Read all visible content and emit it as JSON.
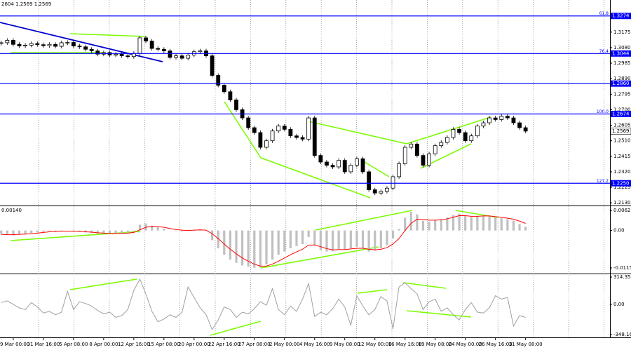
{
  "chart_data": [
    {
      "type": "candlestick",
      "title": "2604 1.2569 1.2569",
      "values": [
        1.311,
        1.3125,
        1.31,
        1.309,
        1.3095,
        1.3105,
        1.3098,
        1.3092,
        1.31,
        1.3088,
        1.311,
        1.3112,
        1.309,
        1.3085,
        1.307,
        1.306,
        1.304,
        1.305,
        1.3035,
        1.304,
        1.303,
        1.3025,
        1.3045,
        1.314,
        1.312,
        1.3075,
        1.307,
        1.306,
        1.302,
        1.303,
        1.3015,
        1.3035,
        1.3055,
        1.306,
        1.303,
        1.291,
        1.285,
        1.281,
        1.276,
        1.27,
        1.265,
        1.259,
        1.256,
        1.247,
        1.251,
        1.257,
        1.26,
        1.258,
        1.254,
        1.253,
        1.252,
        1.265,
        1.242,
        1.238,
        1.236,
        1.235,
        1.239,
        1.232,
        1.236,
        1.24,
        1.232,
        1.221,
        1.219,
        1.22,
        1.222,
        1.229,
        1.237,
        1.247,
        1.249,
        1.242,
        1.236,
        1.243,
        1.248,
        1.25,
        1.253,
        1.258,
        1.256,
        1.251,
        1.254,
        1.26,
        1.262,
        1.265,
        1.264,
        1.266,
        1.265,
        1.262,
        1.259,
        1.2569
      ],
      "xlim": [
        -0.2,
        101
      ],
      "xticks": [
        {
          "value": 2,
          "label": "29 Mar 00:00"
        },
        {
          "value": 7,
          "label": "31 Mar 16:00"
        },
        {
          "value": 12,
          "label": "5 Apr 08:00"
        },
        {
          "value": 17,
          "label": "8 Apr 00:00"
        },
        {
          "value": 22,
          "label": "12 Apr 16:00"
        },
        {
          "value": 27,
          "label": "15 Apr 08:00"
        },
        {
          "value": 32,
          "label": "20 Apr 00:00"
        },
        {
          "value": 37,
          "label": "22 Apr 16:00"
        },
        {
          "value": 42,
          "label": "27 Apr 08:00"
        },
        {
          "value": 47,
          "label": "2 May 00:00"
        },
        {
          "value": 52,
          "label": "4 May 16:00"
        },
        {
          "value": 57,
          "label": "9 May 08:00"
        },
        {
          "value": 62,
          "label": "12 May 00:00"
        },
        {
          "value": 67,
          "label": "16 May 16:00"
        },
        {
          "value": 72,
          "label": "19 May 08:00"
        },
        {
          "value": 77,
          "label": "24 May 00:00"
        },
        {
          "value": 82,
          "label": "26 May 16:00"
        },
        {
          "value": 87,
          "label": "31 May 08:00"
        }
      ],
      "ylim": [
        1.2118,
        1.3363
      ],
      "yticks": [
        1.3175,
        {
          "value": 1.308,
          "label": "1.3080"
        },
        1.2985,
        {
          "value": 1.289,
          "label": "1.2890"
        },
        1.2795,
        {
          "value": 1.27,
          "label": "1.2700"
        },
        1.2605,
        {
          "value": 1.251,
          "label": "1.2510"
        },
        1.2415,
        {
          "value": 1.232,
          "label": "1.2320"
        },
        1.2225,
        {
          "value": 1.213,
          "label": "1.2130"
        }
      ],
      "levels": [
        {
          "price": 1.3274,
          "fib": "61.8"
        },
        {
          "price": 1.3044,
          "fib": "76.4"
        },
        {
          "price": {
            "value": 1.286,
            "label": "1.2860"
          }
        },
        {
          "price": 1.2674,
          "fib": "100.0"
        },
        {
          "price": {
            "value": 1.225,
            "label": "1.2250"
          },
          "fib": "127.2"
        }
      ],
      "level_color": "#0000ff",
      "last_price": 1.2569
    },
    {
      "type": "macd",
      "title": "0.00140",
      "ylim": [
        -0.0131,
        0.0073
      ],
      "yticks": [
        0.0062,
        {
          "value": 0,
          "label": "0.00"
        },
        -0.01158
      ],
      "series": [
        {
          "color": "#c0c0c0",
          "values": [
            -0.001,
            -0.0012,
            -0.0015,
            -0.0012,
            -0.001,
            -0.0008,
            -0.0006,
            -0.0004,
            -0.0002,
            -0.0003,
            -0.0001,
            0.0,
            -0.0002,
            -0.0004,
            -0.0006,
            -0.0008,
            -0.001,
            -0.0009,
            -0.001,
            -0.0008,
            -0.0009,
            -0.0007,
            -0.0002,
            0.0018,
            0.0022,
            0.0015,
            0.001,
            0.0006,
            0.0,
            -0.0002,
            -0.0003,
            -0.0001,
            0.0002,
            0.0004,
            0.0,
            -0.003,
            -0.0055,
            -0.0075,
            -0.009,
            -0.01,
            -0.0108,
            -0.0112,
            -0.0115,
            -0.0114,
            -0.0105,
            -0.009,
            -0.0075,
            -0.0065,
            -0.0055,
            -0.0048,
            -0.0042,
            -0.002,
            -0.0045,
            -0.006,
            -0.0065,
            -0.0064,
            -0.0058,
            -0.006,
            -0.0055,
            -0.005,
            -0.0055,
            -0.0065,
            -0.0062,
            -0.0055,
            -0.0045,
            -0.0025,
            0.0005,
            0.004,
            0.0058,
            0.005,
            0.003,
            0.0028,
            0.0032,
            0.0035,
            0.004,
            0.0048,
            0.0052,
            0.0045,
            0.0042,
            0.0045,
            0.0046,
            0.0045,
            0.004,
            0.0038,
            0.0035,
            0.003,
            0.002,
            0.0012
          ]
        },
        {
          "color": "#ff0000",
          "values": [
            -0.0012,
            -0.0013,
            -0.0013,
            -0.0012,
            -0.0011,
            -0.001,
            -0.0008,
            -0.0006,
            -0.0004,
            -0.0003,
            -0.0002,
            -0.0002,
            -0.0002,
            -0.0003,
            -0.0004,
            -0.0005,
            -0.0007,
            -0.0008,
            -0.0009,
            -0.0009,
            -0.0009,
            -0.0008,
            -0.0006,
            0.0002,
            0.001,
            0.0013,
            0.0012,
            0.001,
            0.0006,
            0.0003,
            0.0001,
            0.0,
            0.0001,
            0.0002,
            0.0001,
            -0.001,
            -0.0025,
            -0.0042,
            -0.0058,
            -0.0072,
            -0.0085,
            -0.0095,
            -0.0104,
            -0.011,
            -0.011,
            -0.0104,
            -0.0095,
            -0.0085,
            -0.0075,
            -0.0066,
            -0.0058,
            -0.0045,
            -0.0045,
            -0.005,
            -0.0056,
            -0.006,
            -0.0059,
            -0.0059,
            -0.0057,
            -0.0055,
            -0.0055,
            -0.0058,
            -0.006,
            -0.0058,
            -0.0053,
            -0.0042,
            -0.0025,
            0.0,
            0.0022,
            0.0035,
            0.0034,
            0.0032,
            0.0032,
            0.0033,
            0.0036,
            0.0041,
            0.0046,
            0.0046,
            0.0044,
            0.0044,
            0.0045,
            0.0045,
            0.0043,
            0.0041,
            0.0038,
            0.0035,
            0.0029,
            0.0022
          ]
        }
      ]
    },
    {
      "type": "line",
      "ylim": [
        -372.1,
        338.3
      ],
      "yticks": [
        314.3545,
        {
          "value": 0,
          "label": "0.00"
        },
        -348.166
      ],
      "color": "#a0a0a0",
      "values": [
        20,
        40,
        0,
        -40,
        -60,
        20,
        -30,
        -100,
        -80,
        -120,
        -90,
        150,
        -60,
        30,
        10,
        -20,
        -70,
        -110,
        -90,
        -150,
        -130,
        -60,
        160,
        290,
        120,
        -80,
        -200,
        -170,
        -120,
        -150,
        -90,
        200,
        80,
        -40,
        -120,
        -290,
        -180,
        -30,
        -60,
        -150,
        -90,
        -110,
        -50,
        30,
        -10,
        180,
        -60,
        -120,
        -20,
        -80,
        60,
        240,
        -140,
        -90,
        -120,
        -50,
        60,
        -30,
        -240,
        100,
        -20,
        -120,
        -60,
        90,
        40,
        -280,
        200,
        250,
        180,
        120,
        -60,
        30,
        60,
        -80,
        -40,
        -120,
        -180,
        -60,
        20,
        -90,
        -100,
        -40,
        100,
        60,
        80,
        -250,
        -130,
        -150
      ]
    }
  ]
}
